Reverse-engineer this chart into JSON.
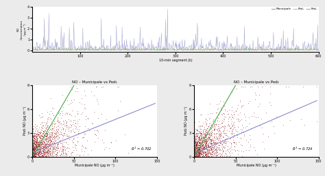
{
  "top_plot": {
    "xlabel": "10-min segment (k)",
    "ylabel": "NO\nConcentration\n(µg m⁻³)",
    "xlim": [
      0,
      600
    ],
    "ylim": [
      -0.1,
      4.0
    ],
    "yticks": [
      0,
      1,
      2,
      3,
      4
    ],
    "xticks": [
      100,
      200,
      300,
      400,
      500,
      600
    ],
    "legend_labels": [
      "Municipale",
      "Pod₁",
      "Pod₂"
    ],
    "line_colors": [
      "#9999cc",
      "#ddaaaa",
      "#88bb77"
    ],
    "n_points": 700
  },
  "scatter1": {
    "title": "NO – Municipale vs Pod₁",
    "xlabel": "Municipale NO (µg m⁻³)",
    "ylabel": "Pod₁ NO (µg m⁻³)",
    "r2": 0.702,
    "xlim": [
      0,
      150
    ],
    "ylim": [
      0,
      9
    ],
    "xticks": [
      0,
      50,
      100,
      150
    ],
    "yticks": [
      0,
      3,
      6,
      9
    ],
    "n_points": 2000,
    "scatter_color": "#8B1010",
    "fit_color": "#8888cc",
    "ref_color": "#44aa44",
    "fit_slope": 0.042,
    "fit_intercept": 0.5,
    "ref_slope": 0.18,
    "ref_x_end": 50
  },
  "scatter2": {
    "title": "NO – Municipale vs Pod₂",
    "xlabel": "Municipale NO (µg m⁻³)",
    "ylabel": "Pod₂ NO (µg m⁻³)",
    "r2": 0.724,
    "xlim": [
      0,
      150
    ],
    "ylim": [
      0,
      9
    ],
    "xticks": [
      0,
      50,
      100,
      150
    ],
    "yticks": [
      0,
      3,
      6,
      9
    ],
    "n_points": 2000,
    "scatter_color": "#8B1010",
    "fit_color": "#8888cc",
    "ref_color": "#44aa44",
    "fit_slope": 0.045,
    "fit_intercept": 0.4,
    "ref_slope": 0.18,
    "ref_x_end": 50
  },
  "background_color": "#ebebeb",
  "panel_color": "#ffffff"
}
